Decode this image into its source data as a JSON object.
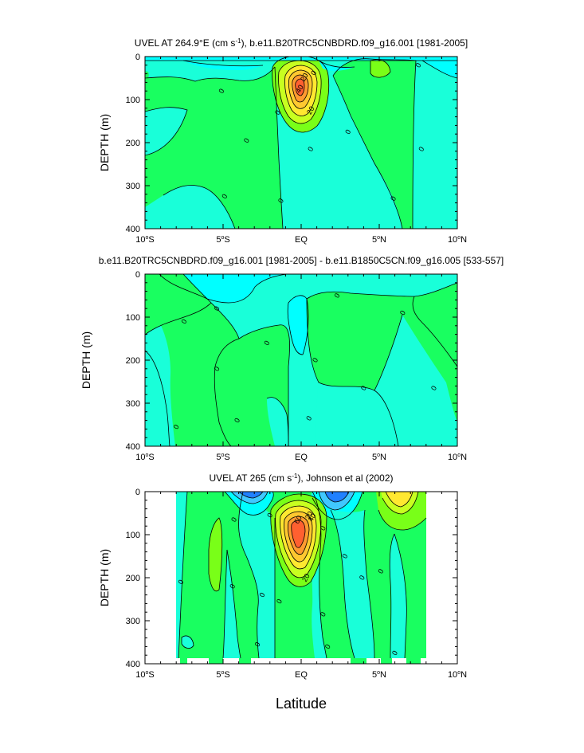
{
  "colors": {
    "cyan": "#19ffd9",
    "aqua": "#00ffff",
    "green": "#19ff60",
    "lime": "#79ff18",
    "yellowgreen": "#c8ff20",
    "yellow": "#ffe830",
    "gold": "#ffc830",
    "orange": "#ff9a30",
    "red": "#ff6030",
    "lightblue": "#40c8ff",
    "blue": "#2080ff",
    "white": "#ffffff"
  },
  "xlabel": "Latitude",
  "chart_data": [
    {
      "type": "contour",
      "title": "UVEL AT 264.9°E (cm s-1), b.e11.B20TRC5CNBDRD.f09_g16.001 [1981-2005]",
      "title_parts": [
        "UVEL AT 264.9°E (cm s",
        "-1",
        "), b.e11.B20TRC5CNBDRD.f09_g16.001 [1981-2005]"
      ],
      "ylabel": "DEPTH (m)",
      "xlim": [
        -10,
        10
      ],
      "ylim": [
        400,
        0
      ],
      "xticks": [
        {
          "v": -10,
          "num": "10",
          "deg": "o",
          "hem": "S"
        },
        {
          "v": -5,
          "num": "5",
          "deg": "o",
          "hem": "S"
        },
        {
          "v": 0,
          "num": "EQ",
          "deg": "",
          "hem": ""
        },
        {
          "v": 5,
          "num": "5",
          "deg": "o",
          "hem": "N"
        },
        {
          "v": 10,
          "num": "10",
          "deg": "o",
          "hem": "N"
        }
      ],
      "yticks": [
        0,
        100,
        200,
        300,
        400
      ],
      "contour_labels": [
        {
          "x": -5.1,
          "y": 80,
          "text": "0"
        },
        {
          "x": -3.5,
          "y": 195,
          "text": "0"
        },
        {
          "x": -4.9,
          "y": 325,
          "text": "0"
        },
        {
          "x": -1.5,
          "y": 130,
          "text": "0"
        },
        {
          "x": -1.3,
          "y": 335,
          "text": "0"
        },
        {
          "x": 0.6,
          "y": 215,
          "text": "0"
        },
        {
          "x": 3.0,
          "y": 175,
          "text": "0"
        },
        {
          "x": 5.9,
          "y": 330,
          "text": "0"
        },
        {
          "x": 7.7,
          "y": 215,
          "text": "0"
        },
        {
          "x": 7.5,
          "y": 20,
          "text": "0"
        },
        {
          "x": 0.8,
          "y": 38,
          "text": "0"
        },
        {
          "x": 0.6,
          "y": 125,
          "text": "20"
        },
        {
          "x": 0.2,
          "y": 48,
          "text": "20"
        },
        {
          "x": -0.1,
          "y": 75,
          "text": "40"
        }
      ]
    },
    {
      "type": "contour",
      "title": "b.e11.B20TRC5CNBDRD.f09_g16.001 [1981-2005] - b.e11.B1850C5CN.f09_g16.005 [533-557]",
      "title_parts": [
        "b.e11.B20TRC5CNBDRD.f09_g16.001 [1981-2005] - b.e11.B1850C5CN.f09_g16.005 [533-557]"
      ],
      "ylabel": "DEPTH (m)",
      "xlim": [
        -10,
        10
      ],
      "ylim": [
        400,
        0
      ],
      "xticks": [
        {
          "v": -10,
          "num": "10",
          "deg": "o",
          "hem": "S"
        },
        {
          "v": -5,
          "num": "5",
          "deg": "o",
          "hem": "S"
        },
        {
          "v": 0,
          "num": "EQ",
          "deg": "",
          "hem": ""
        },
        {
          "v": 5,
          "num": "5",
          "deg": "o",
          "hem": "N"
        },
        {
          "v": 10,
          "num": "10",
          "deg": "o",
          "hem": "N"
        }
      ],
      "yticks": [
        0,
        100,
        200,
        300,
        400
      ],
      "contour_labels": [
        {
          "x": -7.5,
          "y": 110,
          "text": "0"
        },
        {
          "x": -5.4,
          "y": 80,
          "text": "0"
        },
        {
          "x": -5.4,
          "y": 220,
          "text": "0"
        },
        {
          "x": -8.0,
          "y": 355,
          "text": "0"
        },
        {
          "x": -4.1,
          "y": 340,
          "text": "0"
        },
        {
          "x": -2.2,
          "y": 160,
          "text": "0"
        },
        {
          "x": 0.9,
          "y": 200,
          "text": "0"
        },
        {
          "x": 0.5,
          "y": 335,
          "text": "0"
        },
        {
          "x": 2.3,
          "y": 50,
          "text": "0"
        },
        {
          "x": 4.0,
          "y": 265,
          "text": "0"
        },
        {
          "x": 6.5,
          "y": 90,
          "text": "0"
        },
        {
          "x": 8.5,
          "y": 265,
          "text": "0"
        }
      ]
    },
    {
      "type": "contour",
      "title": "UVEL AT 265 (cm s-1), Johnson et al (2002)",
      "title_parts": [
        "UVEL AT 265 (cm s",
        "-1",
        "), Johnson et al (2002)"
      ],
      "ylabel": "DEPTH (m)",
      "xlim": [
        -10,
        10
      ],
      "ylim": [
        400,
        0
      ],
      "xticks": [
        {
          "v": -10,
          "num": "10",
          "deg": "o",
          "hem": "S"
        },
        {
          "v": -5,
          "num": "5",
          "deg": "o",
          "hem": "S"
        },
        {
          "v": 0,
          "num": "EQ",
          "deg": "",
          "hem": ""
        },
        {
          "v": 5,
          "num": "5",
          "deg": "o",
          "hem": "N"
        },
        {
          "v": 10,
          "num": "10",
          "deg": "o",
          "hem": "N"
        }
      ],
      "yticks": [
        0,
        100,
        200,
        300,
        400
      ],
      "data_extent_lat": [
        -8,
        8
      ],
      "contour_labels": [
        {
          "x": -7.7,
          "y": 210,
          "text": "0"
        },
        {
          "x": -4.3,
          "y": 65,
          "text": "0"
        },
        {
          "x": -4.4,
          "y": 220,
          "text": "0"
        },
        {
          "x": -2.5,
          "y": 240,
          "text": "0"
        },
        {
          "x": -1.4,
          "y": 255,
          "text": "0"
        },
        {
          "x": -2.8,
          "y": 355,
          "text": "0"
        },
        {
          "x": 1.4,
          "y": 85,
          "text": "0"
        },
        {
          "x": 1.4,
          "y": 285,
          "text": "0"
        },
        {
          "x": 1.7,
          "y": 360,
          "text": "0"
        },
        {
          "x": 2.8,
          "y": 150,
          "text": "0"
        },
        {
          "x": 3.9,
          "y": 200,
          "text": "0"
        },
        {
          "x": 5.1,
          "y": 185,
          "text": "0"
        },
        {
          "x": 6.0,
          "y": 375,
          "text": "0"
        },
        {
          "x": -2.0,
          "y": 55,
          "text": "0"
        },
        {
          "x": 0.3,
          "y": 200,
          "text": "20"
        },
        {
          "x": 0.5,
          "y": 55,
          "text": "20"
        },
        {
          "x": 0.7,
          "y": 60,
          "text": "40"
        },
        {
          "x": -0.2,
          "y": 65,
          "text": "60"
        }
      ]
    }
  ]
}
